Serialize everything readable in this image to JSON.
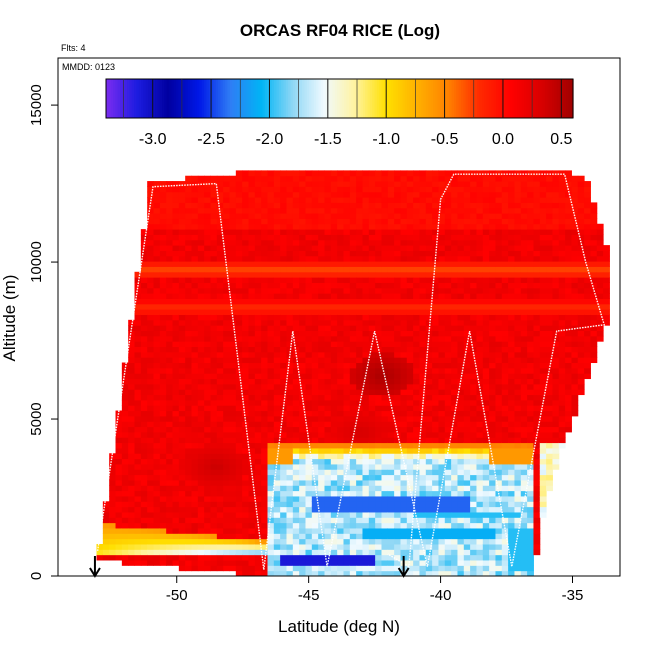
{
  "chart_data": {
    "type": "heatmap",
    "title": "ORCAS RF04 RICE (Log)",
    "xlabel": "Latitude (deg N)",
    "ylabel": "Altitude (m)",
    "xlim": [
      -54.5,
      -33.2
    ],
    "ylim": [
      0,
      16500
    ],
    "x_ticks": [
      -50,
      -45,
      -40,
      -35
    ],
    "x_tick_labels": [
      "-50",
      "-45",
      "-40",
      "-35"
    ],
    "y_ticks": [
      0,
      5000,
      10000,
      15000
    ],
    "y_tick_labels": [
      "0",
      "5000",
      "10000",
      "15000"
    ],
    "annotations": [
      "Flts: 4",
      "MMDD: 0123"
    ],
    "colorbar": {
      "range": [
        -3.4,
        0.6
      ],
      "ticks": [
        -3.0,
        -2.5,
        -2.0,
        -1.5,
        -1.0,
        -0.5,
        0.0,
        0.5
      ],
      "tick_labels": [
        "-3.0",
        "-2.5",
        "-2.0",
        "-1.5",
        "-1.0",
        "-0.5",
        "0.0",
        "0.5"
      ],
      "colors": [
        "#7b2cf0",
        "#1c1ce0",
        "#0000a0",
        "#0018e8",
        "#2f7df5",
        "#00b5f5",
        "#8fd7f5",
        "#f0faff",
        "#fff3a0",
        "#ffe000",
        "#ffb000",
        "#ff8000",
        "#ff2a00",
        "#ff0000",
        "#d80000",
        "#a00000"
      ]
    },
    "flight_track": [
      [
        -53.0,
        800
      ],
      [
        -50.9,
        12400
      ],
      [
        -48.5,
        12500
      ],
      [
        -46.7,
        200
      ],
      [
        -45.6,
        7800
      ],
      [
        -44.3,
        300
      ],
      [
        -42.5,
        7800
      ],
      [
        -40.5,
        300
      ],
      [
        -38.9,
        7800
      ],
      [
        -37.3,
        300
      ],
      [
        -35.6,
        7800
      ],
      [
        -33.8,
        8000
      ],
      [
        -34.5,
        10000
      ],
      [
        -35.3,
        12800
      ],
      [
        -37.5,
        12800
      ],
      [
        -39.5,
        12800
      ],
      [
        -40.0,
        12000
      ],
      [
        -41.2,
        300
      ],
      [
        -42.0,
        700
      ]
    ],
    "markers_lat": [
      -53.1,
      -41.4
    ],
    "domain": {
      "x": [
        -53.0,
        -51.0,
        -48.5,
        -46.5,
        -40.3,
        -39.5,
        -35.5,
        -34.5,
        -33.6,
        -33.7,
        -35.0,
        -36.0,
        -36.5,
        -46.8,
        -53.0
      ],
      "y": [
        500,
        12500,
        12800,
        12900,
        12900,
        13000,
        13000,
        12700,
        10200,
        8000,
        5000,
        2500,
        0,
        0,
        500
      ]
    },
    "cell_size_deg": 0.24,
    "cell_size_m": 170,
    "field": {
      "base_value": 0.15,
      "lower_band": {
        "x_min": -53.3,
        "x_max": -46.6,
        "bottom": 700,
        "top_left": 1700,
        "top_right": 1100,
        "value_bottom": -2.0,
        "value_top": -0.6
      },
      "cloud_box": {
        "x": [
          -46.6,
          -36.4
        ],
        "y": [
          0,
          4200
        ],
        "value": -1.7,
        "edge_value": -0.4,
        "edge_width": 500
      },
      "cloud_deep": [
        {
          "x": [
            -44.8,
            -38.8
          ],
          "y": [
            2100,
            2500
          ],
          "value": -2.4
        },
        {
          "x": [
            -43.0,
            -38.0
          ],
          "y": [
            1200,
            1500
          ],
          "value": -2.1
        },
        {
          "x": [
            -46.0,
            -42.5
          ],
          "y": [
            300,
            700
          ],
          "value": -3.1
        },
        {
          "x": [
            -41.0,
            -37.0
          ],
          "y": [
            1800,
            2000
          ],
          "value": -2.0
        },
        {
          "x": [
            -37.5,
            -36.3
          ],
          "y": [
            100,
            1600
          ],
          "value": -2.0
        }
      ],
      "right_fringe": {
        "x_start": -36.2,
        "y_max": 4200,
        "value": -1.4
      },
      "upper_rim": {
        "y_threshold": 11000,
        "value": 0.0
      },
      "dark_patches": [
        {
          "lat": -42.2,
          "alt": 6400,
          "value": 0.55
        },
        {
          "lat": -48.5,
          "alt": 3500,
          "value": 0.4
        },
        {
          "lat": -43.0,
          "alt": 4600,
          "value": 0.35
        }
      ],
      "orange_strips": [
        {
          "y": 9750,
          "value": -0.3
        },
        {
          "y": 8550,
          "value": -0.2
        }
      ]
    }
  }
}
